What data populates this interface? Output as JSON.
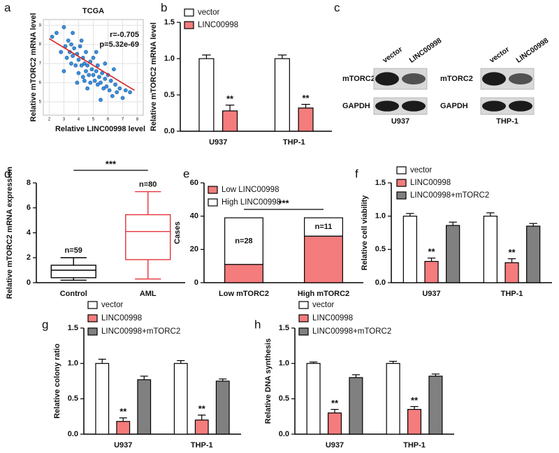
{
  "chart_data": [
    {
      "type": "scatter",
      "panel": "a",
      "title": "TCGA",
      "x_label": "Relative LINC00998 level",
      "y_label": "Relative mTORC2 mRNA level",
      "annotations": [
        "r=-0.705",
        "p=5.32e-69"
      ],
      "x": [
        2.2,
        2.5,
        2.8,
        3.0,
        3.1,
        3.2,
        3.3,
        3.4,
        3.5,
        3.5,
        3.6,
        3.7,
        3.8,
        3.9,
        4.0,
        4.0,
        4.1,
        4.2,
        4.3,
        4.3,
        4.4,
        4.5,
        4.5,
        4.6,
        4.7,
        4.8,
        4.8,
        4.9,
        5.0,
        5.0,
        5.1,
        5.2,
        5.3,
        5.3,
        5.4,
        5.5,
        5.6,
        5.7,
        5.8,
        5.9,
        6.0,
        6.1,
        6.2,
        6.3,
        6.5,
        6.6,
        6.8,
        7.0,
        7.2,
        7.5,
        3.0,
        3.6,
        4.2,
        4.6,
        5.2,
        5.8,
        6.4,
        4.4,
        3.9,
        5.5
      ],
      "y": [
        8.4,
        8.6,
        7.6,
        8.9,
        7.9,
        7.3,
        8.2,
        7.6,
        7.0,
        8.0,
        7.4,
        7.8,
        6.9,
        7.5,
        7.2,
        6.5,
        7.9,
        6.9,
        7.3,
        6.3,
        7.0,
        6.6,
        7.6,
        6.9,
        6.4,
        7.1,
        6.0,
        6.7,
        6.4,
        7.3,
        6.1,
        6.6,
        5.9,
        6.9,
        6.3,
        6.0,
        6.5,
        5.7,
        6.2,
        5.8,
        6.4,
        5.6,
        6.1,
        5.3,
        5.9,
        5.5,
        5.7,
        5.2,
        5.6,
        5.5,
        6.6,
        8.6,
        8.2,
        5.7,
        7.6,
        7.0,
        6.7,
        6.1,
        6.0,
        5.1
      ],
      "color": "#3b8fd9",
      "trendline": {
        "x": [
          2.0,
          7.8
        ],
        "y": [
          8.3,
          5.6
        ],
        "color": "#d92020"
      },
      "xlim": [
        1.6,
        8.4
      ],
      "xticks": [
        2,
        3,
        4,
        5,
        6,
        7,
        8
      ],
      "ylim": [
        4.3,
        9.3
      ],
      "yticks": [
        5,
        6,
        7,
        8,
        9
      ],
      "grid": true
    },
    {
      "type": "bar",
      "panel": "b",
      "y_label": "Relative mTORC2 mRNA level",
      "categories": [
        "U937",
        "THP-1"
      ],
      "series": [
        {
          "name": "vector",
          "color": "#ffffff",
          "values": [
            1.0,
            1.0
          ],
          "errors": [
            0.05,
            0.05
          ]
        },
        {
          "name": "LINC00998",
          "color": "#f47c7c",
          "values": [
            0.28,
            0.32
          ],
          "errors": [
            0.08,
            0.05
          ],
          "significance": [
            "**",
            "**"
          ]
        }
      ],
      "ylim": [
        0,
        1.5
      ],
      "yticks": [
        {
          "value": 0,
          "label": "0.0"
        },
        0.5,
        {
          "value": 1,
          "label": "1.0"
        },
        1.5
      ],
      "legend": "top-left"
    },
    {
      "type": "box",
      "panel": "d",
      "y_label": "Relative mTORC2 mRNA expression",
      "categories": [
        "Control",
        "AML"
      ],
      "min": [
        0.2,
        0.3
      ],
      "q1": [
        0.4,
        1.85
      ],
      "median": [
        1.0,
        4.1
      ],
      "q3": [
        1.4,
        5.45
      ],
      "max": [
        2.0,
        7.3
      ],
      "colors": [
        "#000000",
        "#e3353b"
      ],
      "n_labels": [
        "n=59",
        "n=80"
      ],
      "significance": "***",
      "ylim": [
        0,
        8
      ],
      "yticks": [
        0,
        2,
        4,
        6,
        8
      ]
    },
    {
      "type": "stacked_bar",
      "panel": "e",
      "y_label": "Cases",
      "categories": [
        "Low mTORC2",
        "High mTORC2"
      ],
      "series": [
        {
          "name": "Low LINC00998",
          "color": "#f47c7c",
          "values": [
            11,
            28
          ]
        },
        {
          "name": "High LINC00998",
          "color": "#ffffff",
          "values": [
            28,
            11
          ],
          "value_labels": [
            "n=28",
            "n=11"
          ]
        }
      ],
      "significance": "***",
      "ylim": [
        0,
        60
      ],
      "yticks": [
        0,
        20,
        40,
        60
      ],
      "legend": "top-left"
    },
    {
      "type": "bar",
      "panel": "f",
      "y_label": "Relative cell viability",
      "categories": [
        "U937",
        "THP-1"
      ],
      "series": [
        {
          "name": "vector",
          "color": "#ffffff",
          "values": [
            1.0,
            1.0
          ],
          "errors": [
            0.04,
            0.05
          ]
        },
        {
          "name": "LINC00998",
          "color": "#f47c7c",
          "values": [
            0.32,
            0.3
          ],
          "errors": [
            0.05,
            0.06
          ],
          "significance": [
            "**",
            "**"
          ]
        },
        {
          "name": "LINC00998+mTORC2",
          "color": "#808080",
          "values": [
            0.86,
            0.85
          ],
          "errors": [
            0.05,
            0.04
          ]
        }
      ],
      "ylim": [
        0,
        1.5
      ],
      "yticks": [
        {
          "value": 0,
          "label": "0.0"
        },
        0.5,
        {
          "value": 1,
          "label": "1.0"
        },
        1.5
      ],
      "legend": "top-left"
    },
    {
      "type": "bar",
      "panel": "g",
      "y_label": "Relative colony ratio",
      "categories": [
        "U937",
        "THP-1"
      ],
      "series": [
        {
          "name": "vector",
          "color": "#ffffff",
          "values": [
            1.0,
            1.0
          ],
          "errors": [
            0.06,
            0.04
          ]
        },
        {
          "name": "LINC00998",
          "color": "#f47c7c",
          "values": [
            0.18,
            0.2
          ],
          "errors": [
            0.05,
            0.07
          ],
          "significance": [
            "**",
            "**"
          ]
        },
        {
          "name": "LINC00998+mTORC2",
          "color": "#808080",
          "values": [
            0.77,
            0.75
          ],
          "errors": [
            0.05,
            0.03
          ]
        }
      ],
      "ylim": [
        0,
        1.5
      ],
      "yticks": [
        {
          "value": 0,
          "label": "0.0"
        },
        0.5,
        {
          "value": 1,
          "label": "1.0"
        },
        1.5
      ],
      "legend": "top-left"
    },
    {
      "type": "bar",
      "panel": "h",
      "y_label": "Relative DNA synthesis",
      "categories": [
        "U937",
        "THP-1"
      ],
      "series": [
        {
          "name": "vector",
          "color": "#ffffff",
          "values": [
            1.0,
            1.0
          ],
          "errors": [
            0.02,
            0.03
          ]
        },
        {
          "name": "LINC00998",
          "color": "#f47c7c",
          "values": [
            0.3,
            0.35
          ],
          "errors": [
            0.05,
            0.04
          ],
          "significance": [
            "**",
            "**"
          ]
        },
        {
          "name": "LINC00998+mTORC2",
          "color": "#808080",
          "values": [
            0.8,
            0.82
          ],
          "errors": [
            0.04,
            0.03
          ]
        }
      ],
      "ylim": [
        0,
        1.5
      ],
      "yticks": [
        {
          "value": 0,
          "label": "0.0"
        },
        0.5,
        {
          "value": 1,
          "label": "1.0"
        },
        1.5
      ],
      "legend": "top-left"
    }
  ],
  "western_blots": {
    "panel": "c",
    "blots": [
      {
        "cell_line": "U937",
        "lanes": [
          "vector",
          "LINC00998"
        ],
        "rows": [
          "mTORC2",
          "GAPDH"
        ]
      },
      {
        "cell_line": "THP-1",
        "lanes": [
          "vector",
          "LINC00998"
        ],
        "rows": [
          "mTORC2",
          "GAPDH"
        ]
      }
    ]
  }
}
